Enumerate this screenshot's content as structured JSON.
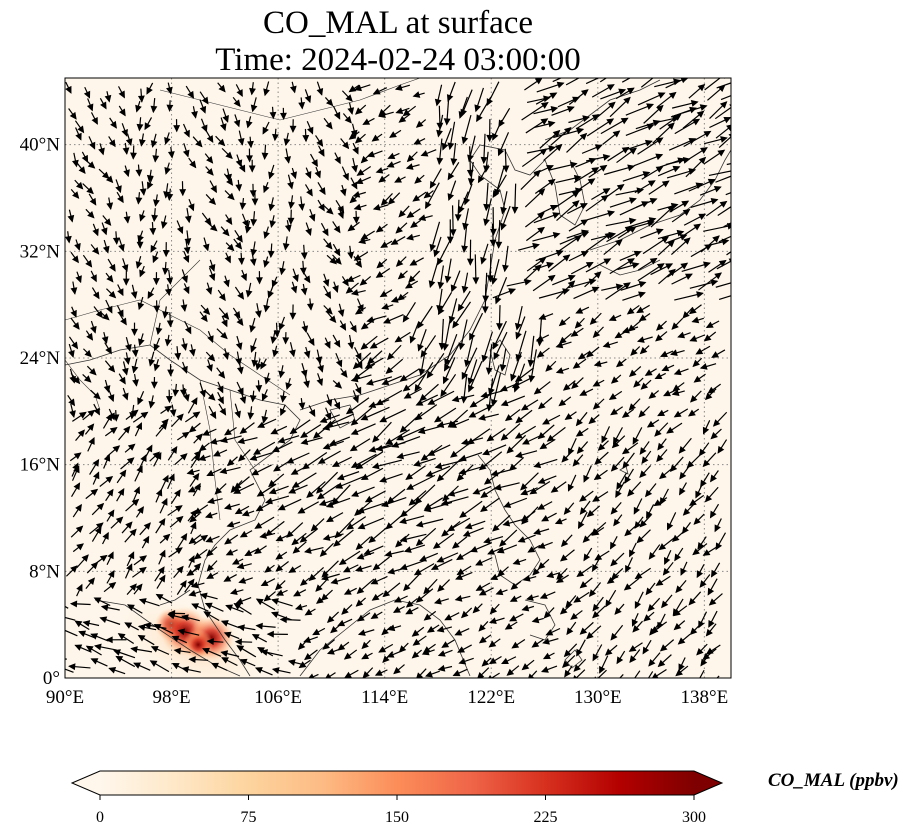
{
  "title": {
    "line1": "CO_MAL at surface",
    "line2": "Time: 2024-02-24 03:00:00"
  },
  "map": {
    "extent_lon": [
      90,
      140
    ],
    "extent_lat": [
      0,
      45
    ],
    "lon_ticks": [
      "90°E",
      "98°E",
      "106°E",
      "114°E",
      "122°E",
      "130°E",
      "138°E"
    ],
    "lat_ticks": [
      "0°",
      "8°N",
      "16°N",
      "24°N",
      "32°N",
      "40°N"
    ],
    "gridlines": "dotted",
    "background_color": "#fef6ea",
    "hotspots": [
      {
        "lon": 98,
        "lat": 4,
        "value_ppbv": 150
      },
      {
        "lon": 99,
        "lat": 3.5,
        "value_ppbv": 280
      },
      {
        "lon": 101,
        "lat": 3,
        "value_ppbv": 250
      },
      {
        "lon": 100,
        "lat": 2.5,
        "value_ppbv": 120
      }
    ],
    "wind_vectors": "quiver field of black arrows; strong northeasterly flow over South China Sea and near Taiwan"
  },
  "colorbar": {
    "label": "CO_MAL (ppbv)",
    "min": 0,
    "max": 300,
    "ticks": [
      "0",
      "75",
      "150",
      "225",
      "300"
    ],
    "extend": "both",
    "colormap": "OrRd",
    "colors": [
      "#fff7ec",
      "#fee8c8",
      "#fdd49e",
      "#fdbb84",
      "#fc8d59",
      "#ef6548",
      "#d7301f",
      "#b30000",
      "#7f0000"
    ]
  }
}
